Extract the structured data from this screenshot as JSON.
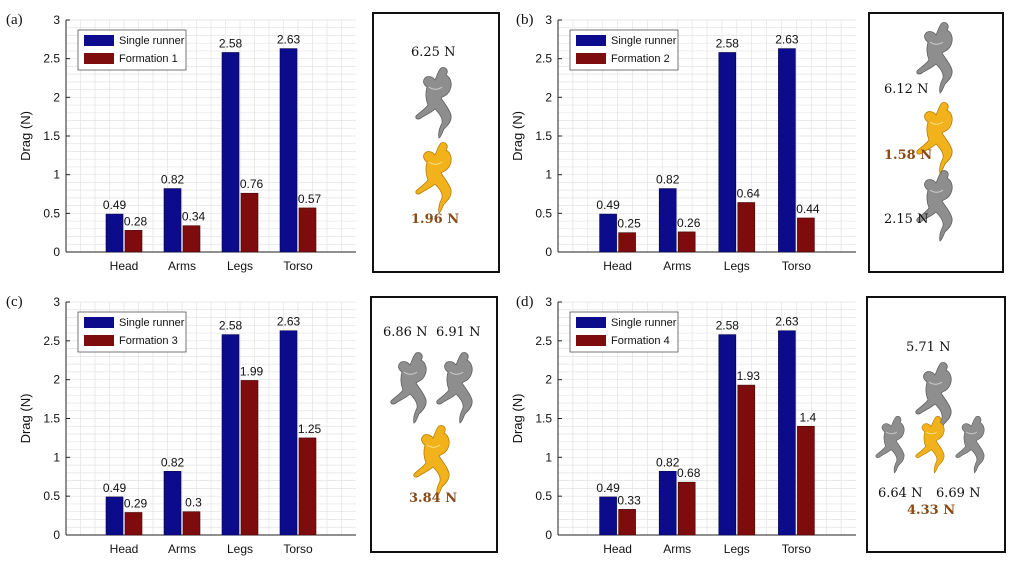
{
  "colors": {
    "single": "#0b0b8c",
    "formation": "#7e0c0c",
    "grid": "#e3e3e3",
    "gold": "#f2b21b",
    "gray": "#8e8e8e",
    "highlight": "#8a4a16"
  },
  "legend_single": "Single runner",
  "ylabel": "Drag (N)",
  "categories": [
    "Head",
    "Arms",
    "Legs",
    "Torso"
  ],
  "y_ticks": [
    "0",
    "0.5",
    "1",
    "1.5",
    "2",
    "2.5",
    "3"
  ],
  "chart_data": [
    {
      "type": "bar",
      "panel": "(a)",
      "categories": [
        "Head",
        "Arms",
        "Legs",
        "Torso"
      ],
      "ylim": [
        0,
        3
      ],
      "ylabel": "Drag (N)",
      "series": [
        {
          "name": "Single runner",
          "values": [
            0.49,
            0.82,
            2.58,
            2.63
          ]
        },
        {
          "name": "Formation 1",
          "values": [
            0.28,
            0.34,
            0.76,
            0.57
          ]
        }
      ]
    },
    {
      "type": "bar",
      "panel": "(b)",
      "categories": [
        "Head",
        "Arms",
        "Legs",
        "Torso"
      ],
      "ylim": [
        0,
        3
      ],
      "ylabel": "Drag (N)",
      "series": [
        {
          "name": "Single runner",
          "values": [
            0.49,
            0.82,
            2.58,
            2.63
          ]
        },
        {
          "name": "Formation 2",
          "values": [
            0.25,
            0.26,
            0.64,
            0.44
          ]
        }
      ]
    },
    {
      "type": "bar",
      "panel": "(c)",
      "categories": [
        "Head",
        "Arms",
        "Legs",
        "Torso"
      ],
      "ylim": [
        0,
        3
      ],
      "ylabel": "Drag (N)",
      "series": [
        {
          "name": "Single runner",
          "values": [
            0.49,
            0.82,
            2.58,
            2.63
          ]
        },
        {
          "name": "Formation 3",
          "values": [
            0.29,
            0.3,
            1.99,
            1.25
          ]
        }
      ]
    },
    {
      "type": "bar",
      "panel": "(d)",
      "categories": [
        "Head",
        "Arms",
        "Legs",
        "Torso"
      ],
      "ylim": [
        0,
        3
      ],
      "ylabel": "Drag (N)",
      "series": [
        {
          "name": "Single runner",
          "values": [
            0.49,
            0.82,
            2.58,
            2.63
          ]
        },
        {
          "name": "Formation 4",
          "values": [
            0.33,
            0.68,
            1.93,
            1.4
          ]
        }
      ]
    }
  ],
  "value_labels": [
    {
      "single": [
        "0.49",
        "0.82",
        "2.58",
        "2.63"
      ],
      "formation": [
        "0.28",
        "0.34",
        "0.76",
        "0.57"
      ]
    },
    {
      "single": [
        "0.49",
        "0.82",
        "2.58",
        "2.63"
      ],
      "formation": [
        "0.25",
        "0.26",
        "0.64",
        "0.44"
      ]
    },
    {
      "single": [
        "0.49",
        "0.82",
        "2.58",
        "2.63"
      ],
      "formation": [
        "0.29",
        "0.3",
        "1.99",
        "1.25"
      ]
    },
    {
      "single": [
        "0.49",
        "0.82",
        "2.58",
        "2.63"
      ],
      "formation": [
        "0.33",
        "0.68",
        "1.93",
        "1.4"
      ]
    }
  ],
  "panels": [
    {
      "label": "(a)",
      "legend_formation": "Formation 1",
      "forces": [
        "6.25 N",
        "1.96 N"
      ]
    },
    {
      "label": "(b)",
      "legend_formation": "Formation 2",
      "forces": [
        "6.12 N",
        "1.58 N",
        "2.15 N"
      ]
    },
    {
      "label": "(c)",
      "legend_formation": "Formation 3",
      "forces": [
        "6.86 N",
        "6.91 N",
        "3.84 N"
      ]
    },
    {
      "label": "(d)",
      "legend_formation": "Formation 4",
      "forces": [
        "5.71 N",
        "6.64 N",
        "6.69 N",
        "4.33 N"
      ]
    }
  ]
}
